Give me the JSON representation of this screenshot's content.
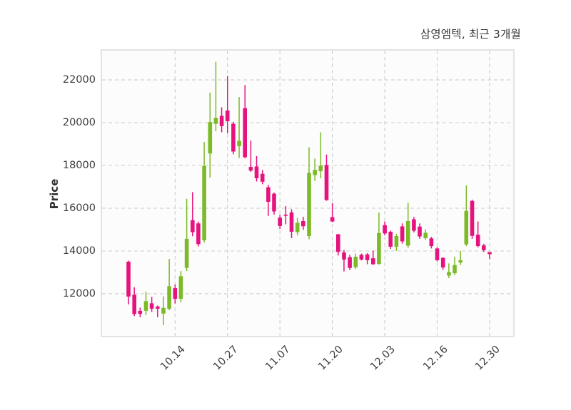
{
  "title": "삼영엠텍, 최근 3개월",
  "chart_data": {
    "type": "candlestick",
    "title": "삼영엠텍, 최근 3개월",
    "ylabel": "Price",
    "y_ticks": [
      12000,
      14000,
      16000,
      18000,
      20000,
      22000
    ],
    "ylim": [
      10030,
      23370
    ],
    "x_tick_labels": [
      "10.14",
      "10.27",
      "11.07",
      "11.20",
      "12.03",
      "12.16",
      "12.30"
    ],
    "x_tick_indices": [
      8,
      17,
      26,
      35,
      44,
      53,
      62
    ],
    "x_start": 37,
    "x_step": 8.161,
    "grid": "dashed",
    "colors": {
      "up": "#7cba28",
      "down": "#e6127e",
      "grid": "#cbcbcb",
      "border": "#e3e3e3"
    },
    "candles": [
      [
        13500,
        13550,
        11500,
        11870
      ],
      [
        11950,
        12300,
        10950,
        11050
      ],
      [
        11200,
        11350,
        10900,
        11060
      ],
      [
        11200,
        12100,
        11000,
        11650
      ],
      [
        11550,
        11850,
        11150,
        11300
      ],
      [
        11400,
        11450,
        10900,
        11300
      ],
      [
        11070,
        11870,
        10530,
        11340
      ],
      [
        11300,
        13630,
        11230,
        12350
      ],
      [
        12260,
        12430,
        11540,
        11760
      ],
      [
        11760,
        13060,
        11590,
        12820
      ],
      [
        13210,
        16440,
        13060,
        14570
      ],
      [
        15440,
        16750,
        14690,
        14880
      ],
      [
        15290,
        15380,
        14210,
        14320
      ],
      [
        14500,
        19100,
        14390,
        17970
      ],
      [
        18560,
        21410,
        17430,
        20030
      ],
      [
        19950,
        22850,
        19600,
        20230
      ],
      [
        20320,
        20720,
        19550,
        19840
      ],
      [
        20570,
        22180,
        19500,
        20070
      ],
      [
        19950,
        20040,
        18520,
        18650
      ],
      [
        18900,
        21200,
        18350,
        19150
      ],
      [
        20680,
        21760,
        18330,
        18390
      ],
      [
        17930,
        19160,
        17700,
        17760
      ],
      [
        17950,
        18440,
        17250,
        17400
      ],
      [
        17610,
        17790,
        17120,
        17240
      ],
      [
        16980,
        17090,
        15640,
        16300
      ],
      [
        16680,
        16730,
        15700,
        15850
      ],
      [
        15560,
        15690,
        15030,
        15170
      ],
      [
        15700,
        16100,
        15250,
        15650
      ],
      [
        15800,
        15950,
        14600,
        14900
      ],
      [
        14880,
        15540,
        14730,
        15320
      ],
      [
        15400,
        15600,
        14990,
        15160
      ],
      [
        14700,
        18850,
        14550,
        17650
      ],
      [
        17550,
        18320,
        17270,
        17790
      ],
      [
        17730,
        19550,
        17400,
        17990
      ],
      [
        18020,
        18510,
        16350,
        16380
      ],
      [
        15580,
        16240,
        15350,
        15380
      ],
      [
        14780,
        14800,
        13790,
        13960
      ],
      [
        13930,
        14040,
        13040,
        13600
      ],
      [
        13710,
        13820,
        13100,
        13210
      ],
      [
        13240,
        13880,
        13160,
        13730
      ],
      [
        13820,
        13880,
        13560,
        13600
      ],
      [
        13840,
        13900,
        13380,
        13570
      ],
      [
        13660,
        14020,
        13350,
        13380
      ],
      [
        13400,
        15800,
        13350,
        14840
      ],
      [
        15210,
        15380,
        14730,
        14820
      ],
      [
        14900,
        14950,
        14100,
        14200
      ],
      [
        14200,
        14800,
        14000,
        14700
      ],
      [
        15150,
        15290,
        14340,
        14450
      ],
      [
        14250,
        16250,
        14150,
        15400
      ],
      [
        15480,
        15590,
        14870,
        14950
      ],
      [
        15140,
        15290,
        14570,
        14680
      ],
      [
        14600,
        15010,
        14510,
        14850
      ],
      [
        14590,
        14660,
        14120,
        14230
      ],
      [
        14120,
        14180,
        13510,
        13570
      ],
      [
        13680,
        13700,
        13120,
        13230
      ],
      [
        12850,
        13420,
        12730,
        13010
      ],
      [
        12960,
        13730,
        12870,
        13340
      ],
      [
        13460,
        14010,
        13340,
        13570
      ],
      [
        14310,
        17070,
        14230,
        15870
      ],
      [
        16340,
        16400,
        14570,
        14710
      ],
      [
        14760,
        15380,
        14170,
        14230
      ],
      [
        14260,
        14340,
        13960,
        14040
      ],
      [
        13950,
        13950,
        13620,
        13850
      ]
    ]
  }
}
